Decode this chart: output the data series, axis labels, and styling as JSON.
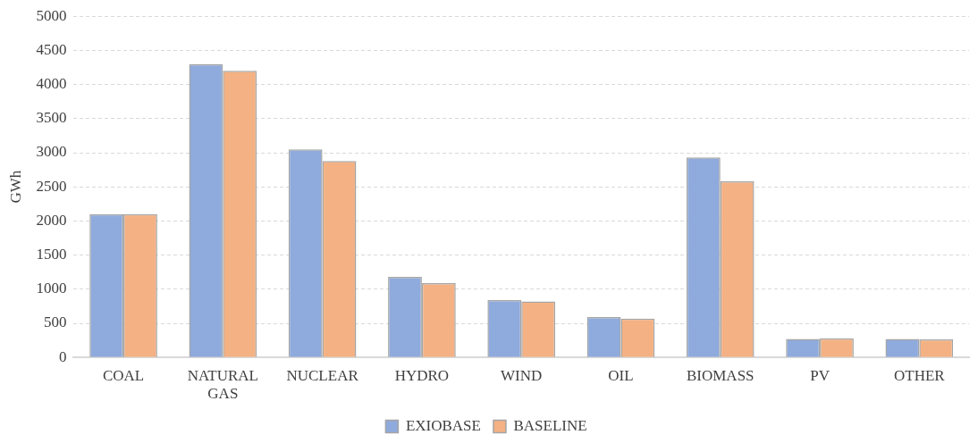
{
  "chart_data": {
    "type": "bar",
    "ylabel": "GWh",
    "categories": [
      "COAL",
      "NATURAL GAS",
      "NUCLEAR",
      "HYDRO",
      "WIND",
      "OIL",
      "BIOMASS",
      "PV",
      "OTHER"
    ],
    "series": [
      {
        "name": "EXIOBASE",
        "color": "#8faadc",
        "values": [
          2100,
          4300,
          3050,
          1180,
          840,
          590,
          2930,
          270,
          270
        ]
      },
      {
        "name": "BASELINE",
        "color": "#f4b183",
        "values": [
          2100,
          4200,
          2880,
          1090,
          820,
          570,
          2580,
          280,
          265
        ]
      }
    ],
    "ylim": [
      0,
      5000
    ],
    "yticks": [
      0,
      500,
      1000,
      1500,
      2000,
      2500,
      3000,
      3500,
      4000,
      4500,
      5000
    ],
    "grid": "y",
    "legend": "bottom"
  }
}
